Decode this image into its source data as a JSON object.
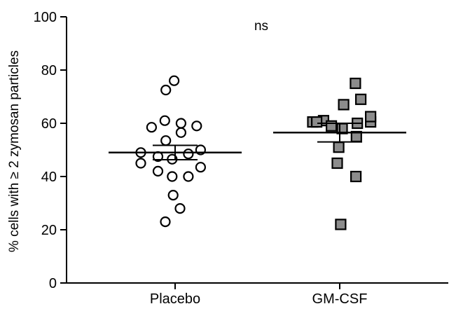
{
  "chart_data": {
    "type": "scatter",
    "title": "",
    "xlabel": "",
    "ylabel": "% cells with ≥ 2 zymosan particles",
    "ylim": [
      0,
      100
    ],
    "yticks": [
      0,
      20,
      40,
      60,
      80,
      100
    ],
    "categories": [
      "Placebo",
      "GM-CSF"
    ],
    "annotation": "ns",
    "grid": false,
    "legend": "none",
    "series": [
      {
        "category": "Placebo",
        "marker": "open-circle",
        "color": "#000000",
        "fill": "#ffffff",
        "mean": 49,
        "sem": [
          46.3,
          51.7
        ],
        "points": [
          {
            "offset": -0.02,
            "value": 76
          },
          {
            "offset": -0.19,
            "value": 72.5
          },
          {
            "offset": -0.21,
            "value": 61
          },
          {
            "offset": 0.12,
            "value": 60
          },
          {
            "offset": 0.44,
            "value": 59
          },
          {
            "offset": -0.48,
            "value": 58.5
          },
          {
            "offset": 0.12,
            "value": 56.5
          },
          {
            "offset": -0.19,
            "value": 53.5
          },
          {
            "offset": 0.52,
            "value": 50
          },
          {
            "offset": -0.7,
            "value": 49
          },
          {
            "offset": 0.27,
            "value": 48.5
          },
          {
            "offset": -0.35,
            "value": 47.5
          },
          {
            "offset": -0.06,
            "value": 46.5
          },
          {
            "offset": -0.7,
            "value": 45
          },
          {
            "offset": 0.52,
            "value": 43.5
          },
          {
            "offset": -0.35,
            "value": 42
          },
          {
            "offset": -0.06,
            "value": 40
          },
          {
            "offset": 0.27,
            "value": 40
          },
          {
            "offset": -0.04,
            "value": 33
          },
          {
            "offset": 0.1,
            "value": 28
          },
          {
            "offset": -0.2,
            "value": 23
          }
        ]
      },
      {
        "category": "GM-CSF",
        "marker": "filled-square",
        "color": "#000000",
        "fill": "#8c8c8c",
        "mean": 56.5,
        "sem": [
          53,
          60
        ],
        "points": [
          {
            "offset": 0.32,
            "value": 75
          },
          {
            "offset": 0.43,
            "value": 69
          },
          {
            "offset": 0.08,
            "value": 67
          },
          {
            "offset": -0.33,
            "value": 61
          },
          {
            "offset": -0.55,
            "value": 60.5
          },
          {
            "offset": -0.47,
            "value": 60.5
          },
          {
            "offset": 0.63,
            "value": 60.5
          },
          {
            "offset": -0.17,
            "value": 59
          },
          {
            "offset": 0.63,
            "value": 62.5
          },
          {
            "offset": 0.36,
            "value": 60
          },
          {
            "offset": 0.05,
            "value": 58
          },
          {
            "offset": 0.34,
            "value": 55
          },
          {
            "offset": -0.02,
            "value": 51
          },
          {
            "offset": -0.05,
            "value": 45
          },
          {
            "offset": 0.33,
            "value": 40
          },
          {
            "offset": 0.02,
            "value": 22
          }
        ]
      }
    ]
  }
}
